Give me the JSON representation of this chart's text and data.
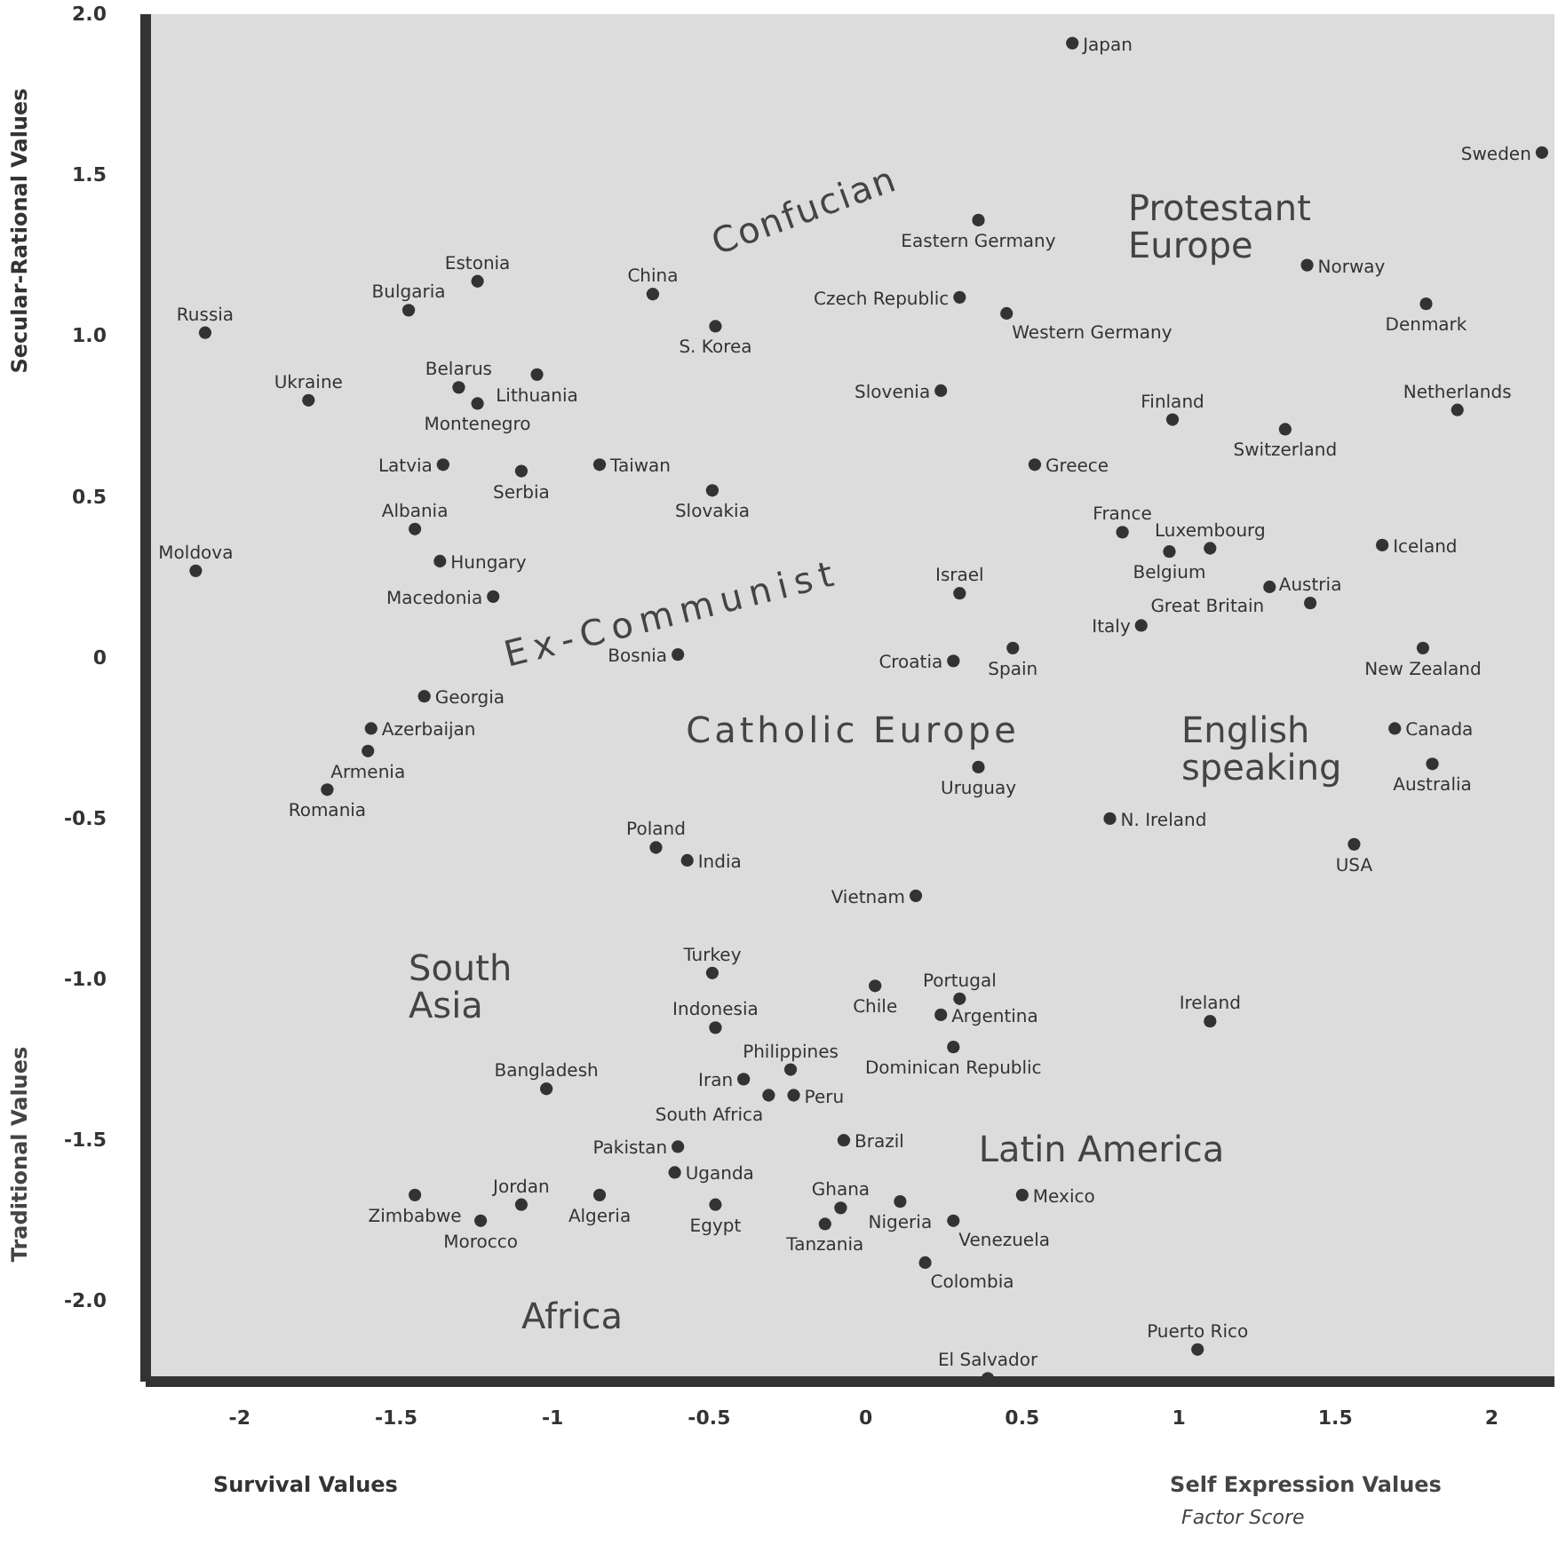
{
  "chart_data": {
    "type": "scatter",
    "xlabel": "Survival Values",
    "ylabel": "Secular-Rational Values",
    "color": "#333333",
    "marker": "circle",
    "grid": false,
    "xlim": [
      -2.3,
      2.2
    ],
    "ylim": [
      -2.25,
      2.0
    ],
    "xticks": [
      -2,
      -1.5,
      -1,
      -0.5,
      0,
      0.5,
      1,
      1.5,
      2
    ],
    "yticks": [
      {
        "value": 2,
        "label": "2.0"
      },
      1.5,
      {
        "value": 1,
        "label": "1.0"
      },
      0.5,
      0,
      -0.5,
      {
        "value": -1,
        "label": "-1.0"
      },
      -1.5,
      {
        "value": -2,
        "label": "-2.0"
      }
    ],
    "x": [
      0.66,
      2.16,
      0.36,
      1.41,
      1.79,
      0.3,
      0.45,
      -0.68,
      -1.24,
      -1.46,
      -2.11,
      -0.48,
      -1.3,
      -1.05,
      -1.24,
      -1.78,
      0.24,
      0.98,
      1.89,
      1.34,
      -1.35,
      -1.1,
      -0.85,
      0.54,
      -0.49,
      -1.44,
      -2.14,
      -1.36,
      0.82,
      1.1,
      0.97,
      1.65,
      -1.19,
      0.3,
      1.29,
      1.42,
      0.88,
      1.78,
      0.47,
      0.28,
      -0.6,
      -1.41,
      1.69,
      -1.58,
      -1.59,
      1.81,
      0.36,
      -1.72,
      0.78,
      1.56,
      -0.67,
      -0.57,
      0.16,
      -0.49,
      0.03,
      0.3,
      0.24,
      1.1,
      -0.48,
      0.28,
      -1.02,
      -0.39,
      -0.24,
      -0.31,
      -0.23,
      -0.07,
      -0.6,
      -0.61,
      0.5,
      -1.44,
      -1.1,
      -1.23,
      -0.85,
      -0.48,
      -0.08,
      -0.13,
      0.11,
      0.28,
      0.19,
      0.39,
      1.06
    ],
    "values": [
      1.91,
      1.57,
      1.36,
      1.22,
      1.1,
      1.12,
      1.07,
      1.13,
      1.17,
      1.08,
      1.01,
      1.03,
      0.84,
      0.88,
      0.79,
      0.8,
      0.83,
      0.74,
      0.77,
      0.71,
      0.6,
      0.58,
      0.6,
      0.6,
      0.52,
      0.4,
      0.27,
      0.3,
      0.39,
      0.34,
      0.33,
      0.35,
      0.19,
      0.2,
      0.22,
      0.17,
      0.1,
      0.03,
      0.03,
      -0.01,
      0.01,
      -0.12,
      -0.22,
      -0.22,
      -0.29,
      -0.33,
      -0.34,
      -0.41,
      -0.5,
      -0.58,
      -0.59,
      -0.63,
      -0.74,
      -0.98,
      -1.02,
      -1.06,
      -1.11,
      -1.13,
      -1.15,
      -1.21,
      -1.34,
      -1.31,
      -1.28,
      -1.36,
      -1.36,
      -1.5,
      -1.52,
      -1.6,
      -1.67,
      -1.67,
      -1.7,
      -1.75,
      -1.67,
      -1.7,
      -1.71,
      -1.76,
      -1.69,
      -1.75,
      -1.88,
      -2.24,
      -2.15
    ],
    "annotations": [
      {
        "text": "Japan",
        "x": 0.66,
        "y": 1.91
      },
      {
        "text": "Sweden",
        "x": 2.16,
        "y": 1.57
      },
      {
        "text": "Eastern Germany",
        "x": 0.36,
        "y": 1.36
      },
      {
        "text": "Norway",
        "x": 1.41,
        "y": 1.22
      },
      {
        "text": "Denmark",
        "x": 1.79,
        "y": 1.1
      },
      {
        "text": "Czech Republic",
        "x": 0.3,
        "y": 1.12
      },
      {
        "text": "Western Germany",
        "x": 0.45,
        "y": 1.07
      },
      {
        "text": "China",
        "x": -0.68,
        "y": 1.13
      },
      {
        "text": "Estonia",
        "x": -1.24,
        "y": 1.17
      },
      {
        "text": "Bulgaria",
        "x": -1.46,
        "y": 1.08
      },
      {
        "text": "Russia",
        "x": -2.11,
        "y": 1.01
      },
      {
        "text": "S. Korea",
        "x": -0.48,
        "y": 1.03
      },
      {
        "text": "Belarus",
        "x": -1.3,
        "y": 0.84
      },
      {
        "text": "Lithuania",
        "x": -1.05,
        "y": 0.88
      },
      {
        "text": "Montenegro",
        "x": -1.24,
        "y": 0.79
      },
      {
        "text": "Ukraine",
        "x": -1.78,
        "y": 0.8
      },
      {
        "text": "Slovenia",
        "x": 0.24,
        "y": 0.83
      },
      {
        "text": "Finland",
        "x": 0.98,
        "y": 0.74
      },
      {
        "text": "Netherlands",
        "x": 1.89,
        "y": 0.77
      },
      {
        "text": "Switzerland",
        "x": 1.34,
        "y": 0.71
      },
      {
        "text": "Latvia",
        "x": -1.35,
        "y": 0.6
      },
      {
        "text": "Serbia",
        "x": -1.1,
        "y": 0.58
      },
      {
        "text": "Taiwan",
        "x": -0.85,
        "y": 0.6
      },
      {
        "text": "Greece",
        "x": 0.54,
        "y": 0.6
      },
      {
        "text": "Slovakia",
        "x": -0.49,
        "y": 0.52
      },
      {
        "text": "Albania",
        "x": -1.44,
        "y": 0.4
      },
      {
        "text": "Moldova",
        "x": -2.14,
        "y": 0.27
      },
      {
        "text": "Hungary",
        "x": -1.36,
        "y": 0.3
      },
      {
        "text": "France",
        "x": 0.82,
        "y": 0.39
      },
      {
        "text": "Luxembourg",
        "x": 1.1,
        "y": 0.34
      },
      {
        "text": "Belgium",
        "x": 0.97,
        "y": 0.33
      },
      {
        "text": "Iceland",
        "x": 1.65,
        "y": 0.35
      },
      {
        "text": "Macedonia",
        "x": -1.19,
        "y": 0.19
      },
      {
        "text": "Israel",
        "x": 0.3,
        "y": 0.2
      },
      {
        "text": "Great Britain",
        "x": 1.29,
        "y": 0.22
      },
      {
        "text": "Austria",
        "x": 1.42,
        "y": 0.17
      },
      {
        "text": "Italy",
        "x": 0.88,
        "y": 0.1
      },
      {
        "text": "New Zealand",
        "x": 1.78,
        "y": 0.03
      },
      {
        "text": "Spain",
        "x": 0.47,
        "y": 0.03
      },
      {
        "text": "Croatia",
        "x": 0.28,
        "y": -0.01
      },
      {
        "text": "Bosnia",
        "x": -0.6,
        "y": 0.01
      },
      {
        "text": "Georgia",
        "x": -1.41,
        "y": -0.12
      },
      {
        "text": "Canada",
        "x": 1.69,
        "y": -0.22
      },
      {
        "text": "Azerbaijan",
        "x": -1.58,
        "y": -0.22
      },
      {
        "text": "Armenia",
        "x": -1.59,
        "y": -0.29
      },
      {
        "text": "Australia",
        "x": 1.81,
        "y": -0.33
      },
      {
        "text": "Uruguay",
        "x": 0.36,
        "y": -0.34
      },
      {
        "text": "Romania",
        "x": -1.72,
        "y": -0.41
      },
      {
        "text": "N. Ireland",
        "x": 0.78,
        "y": -0.5
      },
      {
        "text": "USA",
        "x": 1.56,
        "y": -0.58
      },
      {
        "text": "Poland",
        "x": -0.67,
        "y": -0.59
      },
      {
        "text": "India",
        "x": -0.57,
        "y": -0.63
      },
      {
        "text": "Vietnam",
        "x": 0.16,
        "y": -0.74
      },
      {
        "text": "Turkey",
        "x": -0.49,
        "y": -0.98
      },
      {
        "text": "Chile",
        "x": 0.03,
        "y": -1.02
      },
      {
        "text": "Portugal",
        "x": 0.3,
        "y": -1.06
      },
      {
        "text": "Argentina",
        "x": 0.24,
        "y": -1.11
      },
      {
        "text": "Ireland",
        "x": 1.1,
        "y": -1.13
      },
      {
        "text": "Indonesia",
        "x": -0.48,
        "y": -1.15
      },
      {
        "text": "Dominican Republic",
        "x": 0.28,
        "y": -1.21
      },
      {
        "text": "Bangladesh",
        "x": -1.02,
        "y": -1.34
      },
      {
        "text": "Iran",
        "x": -0.39,
        "y": -1.31
      },
      {
        "text": "Philippines",
        "x": -0.24,
        "y": -1.28
      },
      {
        "text": "South Africa",
        "x": -0.31,
        "y": -1.36
      },
      {
        "text": "Peru",
        "x": -0.23,
        "y": -1.36
      },
      {
        "text": "Brazil",
        "x": -0.07,
        "y": -1.5
      },
      {
        "text": "Pakistan",
        "x": -0.6,
        "y": -1.52
      },
      {
        "text": "Uganda",
        "x": -0.61,
        "y": -1.6
      },
      {
        "text": "Mexico",
        "x": 0.5,
        "y": -1.67
      },
      {
        "text": "Zimbabwe",
        "x": -1.44,
        "y": -1.67
      },
      {
        "text": "Jordan",
        "x": -1.1,
        "y": -1.7
      },
      {
        "text": "Morocco",
        "x": -1.23,
        "y": -1.75
      },
      {
        "text": "Algeria",
        "x": -0.85,
        "y": -1.67
      },
      {
        "text": "Egypt",
        "x": -0.48,
        "y": -1.7
      },
      {
        "text": "Ghana",
        "x": -0.08,
        "y": -1.71
      },
      {
        "text": "Tanzania",
        "x": -0.13,
        "y": -1.76
      },
      {
        "text": "Nigeria",
        "x": 0.11,
        "y": -1.69
      },
      {
        "text": "Venezuela",
        "x": 0.28,
        "y": -1.75
      },
      {
        "text": "Colombia",
        "x": 0.19,
        "y": -1.88
      },
      {
        "text": "El Salvador",
        "x": 0.39,
        "y": -2.24
      },
      {
        "text": "Puerto Rico",
        "x": 1.06,
        "y": -2.15
      },
      "Confucian",
      "Protestant Europe",
      "Ex-Communist",
      "Catholic Europe",
      "English speaking",
      "South Asia",
      "Latin America",
      "Africa",
      "Traditional Values",
      "Self Expression Values",
      "Factor Score"
    ]
  }
}
